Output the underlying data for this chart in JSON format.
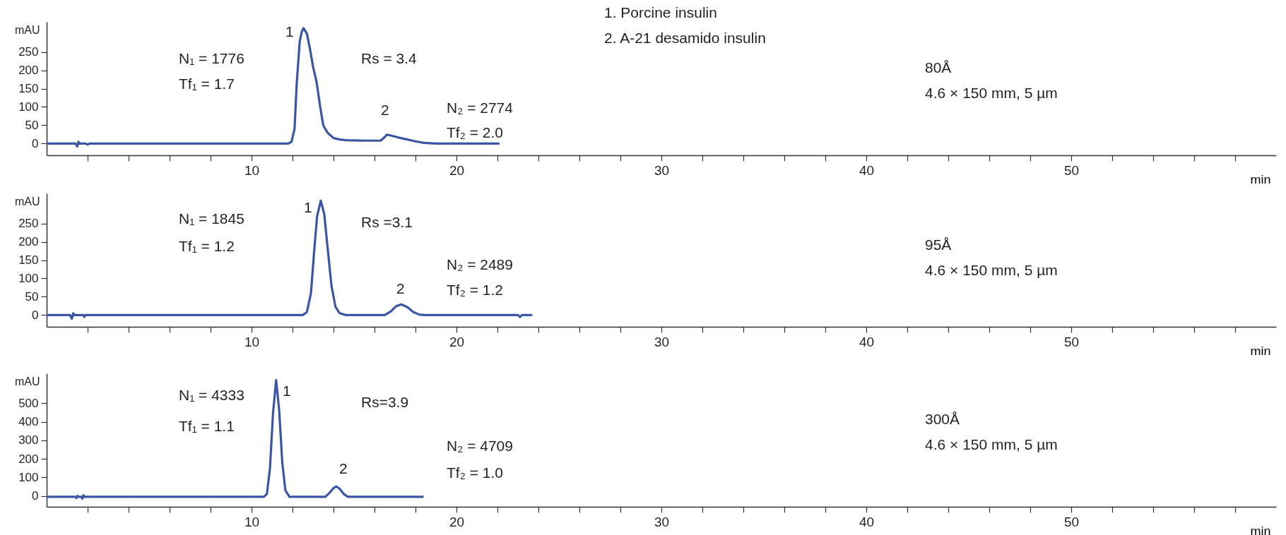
{
  "chart_data": [
    {
      "type": "line",
      "xlabel": "min",
      "ylabel": "mAU",
      "xlim": [
        0,
        60
      ],
      "ylim": [
        -32,
        332
      ],
      "xticks": [
        {
          "value": 2,
          "label": null
        },
        {
          "value": 4,
          "label": null
        },
        {
          "value": 6,
          "label": null
        },
        {
          "value": 8,
          "label": null
        },
        10,
        {
          "value": 12,
          "label": null
        },
        {
          "value": 14,
          "label": null
        },
        {
          "value": 16,
          "label": null
        },
        {
          "value": 18,
          "label": null
        },
        20,
        {
          "value": 22,
          "label": null
        },
        {
          "value": 24,
          "label": null
        },
        {
          "value": 26,
          "label": null
        },
        {
          "value": 28,
          "label": null
        },
        30,
        {
          "value": 32,
          "label": null
        },
        {
          "value": 34,
          "label": null
        },
        {
          "value": 36,
          "label": null
        },
        {
          "value": 38,
          "label": null
        },
        40,
        {
          "value": 42,
          "label": null
        },
        {
          "value": 44,
          "label": null
        },
        {
          "value": 46,
          "label": null
        },
        {
          "value": 48,
          "label": null
        },
        50,
        {
          "value": 52,
          "label": null
        },
        {
          "value": 54,
          "label": null
        },
        {
          "value": 56,
          "label": null
        },
        {
          "value": 58,
          "label": null
        }
      ],
      "yticks": [
        0,
        50,
        100,
        150,
        200,
        250
      ],
      "series": [
        {
          "color": "#3b55a5",
          "x": [
            0,
            1.4,
            1.5,
            1.55,
            1.6,
            1.9,
            2.0,
            2.1,
            11.8,
            11.95,
            12.1,
            12.2,
            12.35,
            12.45,
            12.54,
            12.7,
            12.85,
            13.0,
            13.18,
            13.35,
            13.5,
            13.7,
            14.0,
            14.3,
            14.6,
            15.5,
            16.3,
            16.45,
            16.6,
            16.8,
            17.2,
            17.6,
            18.0,
            18.4,
            19.0,
            22.1
          ],
          "values": [
            0,
            0,
            -8,
            5,
            0,
            0,
            -3,
            0,
            0,
            5,
            40,
            160,
            278,
            305,
            315,
            300,
            259,
            210,
            166,
            100,
            50,
            30,
            15,
            11,
            9,
            8,
            8,
            15,
            24,
            22,
            16,
            11,
            6,
            2,
            0,
            0
          ]
        }
      ],
      "annotations": [
        "N₁ = 1776",
        "Tf₁ = 1.7",
        "Rs = 3.4",
        "N₂ = 2774",
        "Tf₂ = 2.0",
        "1. Porcine insulin",
        "2. A-21 desamido insulin",
        "80Å",
        "4.6 × 150 mm, 5 µm",
        "1",
        "2"
      ]
    },
    {
      "type": "line",
      "xlabel": "min",
      "ylabel": "mAU",
      "xlim": [
        0,
        60
      ],
      "ylim": [
        -32,
        332
      ],
      "xticks": [
        {
          "value": 2,
          "label": null
        },
        {
          "value": 4,
          "label": null
        },
        {
          "value": 6,
          "label": null
        },
        {
          "value": 8,
          "label": null
        },
        10,
        {
          "value": 12,
          "label": null
        },
        {
          "value": 14,
          "label": null
        },
        {
          "value": 16,
          "label": null
        },
        {
          "value": 18,
          "label": null
        },
        20,
        {
          "value": 22,
          "label": null
        },
        {
          "value": 24,
          "label": null
        },
        {
          "value": 26,
          "label": null
        },
        {
          "value": 28,
          "label": null
        },
        30,
        {
          "value": 32,
          "label": null
        },
        {
          "value": 34,
          "label": null
        },
        {
          "value": 36,
          "label": null
        },
        {
          "value": 38,
          "label": null
        },
        40,
        {
          "value": 42,
          "label": null
        },
        {
          "value": 44,
          "label": null
        },
        {
          "value": 46,
          "label": null
        },
        {
          "value": 48,
          "label": null
        },
        50,
        {
          "value": 52,
          "label": null
        },
        {
          "value": 54,
          "label": null
        },
        {
          "value": 56,
          "label": null
        },
        {
          "value": 58,
          "label": null
        }
      ],
      "yticks": [
        0,
        50,
        100,
        150,
        200,
        250
      ],
      "series": [
        {
          "color": "#3b55a5",
          "x": [
            0,
            1.15,
            1.23,
            1.3,
            1.35,
            1.8,
            1.83,
            1.9,
            12.5,
            12.7,
            12.9,
            13.05,
            13.2,
            13.38,
            13.55,
            13.7,
            13.9,
            14.1,
            14.3,
            14.6,
            16.5,
            16.8,
            17.05,
            17.3,
            17.6,
            17.9,
            18.2,
            18.5,
            23.0,
            23.1,
            23.2,
            23.7
          ],
          "values": [
            0,
            0,
            -10,
            5,
            0,
            0,
            -5,
            0,
            0,
            8,
            60,
            170,
            270,
            312,
            275,
            190,
            80,
            22,
            5,
            0,
            0,
            10,
            24,
            29,
            22,
            8,
            1,
            0,
            0,
            -5,
            0,
            0
          ]
        }
      ],
      "annotations": [
        "N₁ = 1845",
        "Tf₁ = 1.2",
        "Rs =3.1",
        "N₂ = 2489",
        "Tf₂ = 1.2",
        "95Å",
        "4.6 × 150 mm, 5 µm",
        "1",
        "2"
      ]
    },
    {
      "type": "line",
      "xlabel": "min",
      "ylabel": "mAU",
      "xlim": [
        0,
        60
      ],
      "ylim": [
        -59,
        662
      ],
      "xticks": [
        {
          "value": 2,
          "label": null
        },
        {
          "value": 4,
          "label": null
        },
        {
          "value": 6,
          "label": null
        },
        {
          "value": 8,
          "label": null
        },
        10,
        {
          "value": 12,
          "label": null
        },
        {
          "value": 14,
          "label": null
        },
        {
          "value": 16,
          "label": null
        },
        {
          "value": 18,
          "label": null
        },
        20,
        {
          "value": 22,
          "label": null
        },
        {
          "value": 24,
          "label": null
        },
        {
          "value": 26,
          "label": null
        },
        {
          "value": 28,
          "label": null
        },
        30,
        {
          "value": 32,
          "label": null
        },
        {
          "value": 34,
          "label": null
        },
        {
          "value": 36,
          "label": null
        },
        {
          "value": 38,
          "label": null
        },
        40,
        {
          "value": 42,
          "label": null
        },
        {
          "value": 44,
          "label": null
        },
        {
          "value": 46,
          "label": null
        },
        {
          "value": 48,
          "label": null
        },
        50,
        {
          "value": 52,
          "label": null
        },
        {
          "value": 54,
          "label": null
        },
        {
          "value": 56,
          "label": null
        },
        {
          "value": 58,
          "label": null
        }
      ],
      "yticks": [
        0,
        100,
        200,
        300,
        400,
        500
      ],
      "series": [
        {
          "color": "#3b55a5",
          "x": [
            0,
            1.4,
            1.46,
            1.5,
            1.55,
            1.7,
            1.74,
            1.8,
            1.85,
            10.6,
            10.75,
            10.9,
            11.05,
            11.2,
            11.35,
            11.5,
            11.65,
            11.85,
            13.6,
            13.8,
            14.0,
            14.14,
            14.3,
            14.5,
            14.7,
            18.4
          ],
          "values": [
            -5,
            -5,
            -12,
            0,
            -5,
            -5,
            -15,
            3,
            -5,
            -5,
            10,
            150,
            450,
            625,
            460,
            180,
            30,
            -5,
            -5,
            15,
            42,
            51,
            38,
            10,
            -5,
            -5
          ]
        }
      ],
      "annotations": [
        "N₁ = 4333",
        "Tf₁ = 1.1",
        "Rs=3.9",
        "N₂ = 4709",
        "Tf₂ = 1.0",
        "300Å",
        "4.6 × 150 mm, 5 µm",
        "1",
        "2"
      ]
    }
  ]
}
